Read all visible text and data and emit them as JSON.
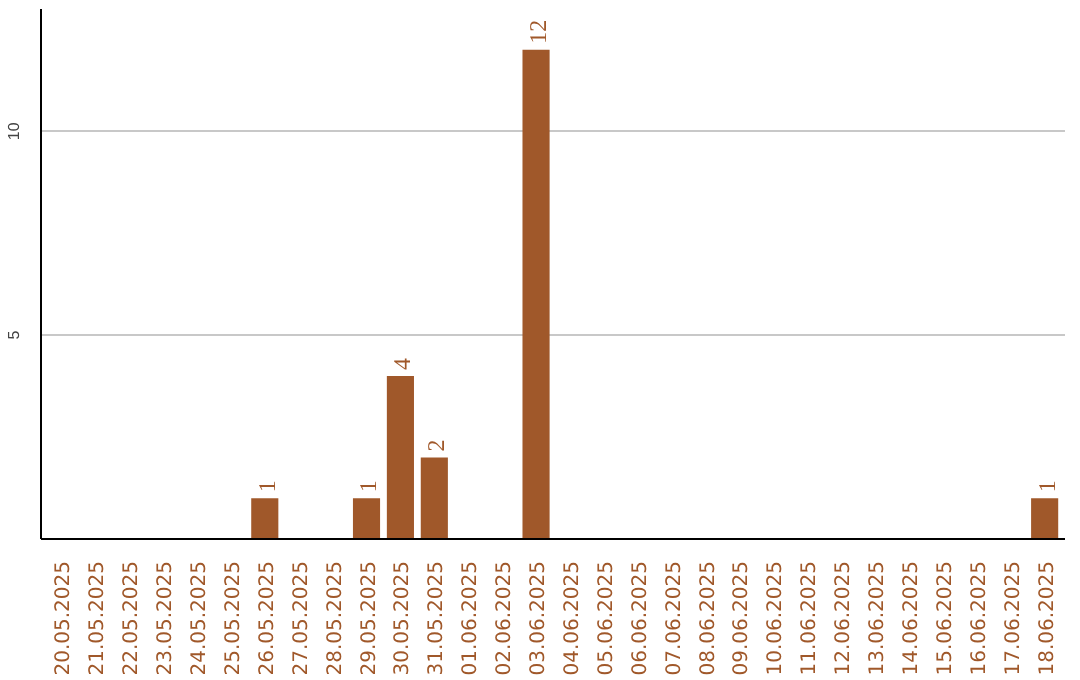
{
  "chart_data": {
    "type": "bar",
    "categories": [
      "20.05.2025",
      "21.05.2025",
      "22.05.2025",
      "23.05.2025",
      "24.05.2025",
      "25.05.2025",
      "26.05.2025",
      "27.05.2025",
      "28.05.2025",
      "29.05.2025",
      "30.05.2025",
      "31.05.2025",
      "01.06.2025",
      "02.06.2025",
      "03.06.2025",
      "04.06.2025",
      "05.06.2025",
      "06.06.2025",
      "07.06.2025",
      "08.06.2025",
      "09.06.2025",
      "10.06.2025",
      "11.06.2025",
      "12.06.2025",
      "13.06.2025",
      "14.06.2025",
      "15.06.2025",
      "16.06.2025",
      "17.06.2025",
      "18.06.2025"
    ],
    "values": [
      0,
      0,
      0,
      0,
      0,
      0,
      1,
      0,
      0,
      1,
      4,
      2,
      0,
      0,
      12,
      0,
      0,
      0,
      0,
      0,
      0,
      0,
      0,
      0,
      0,
      0,
      0,
      0,
      0,
      1
    ],
    "value_labels": [
      null,
      null,
      null,
      null,
      null,
      null,
      "1",
      null,
      null,
      "1",
      "4",
      "2",
      null,
      null,
      "12",
      null,
      null,
      null,
      null,
      null,
      null,
      null,
      null,
      null,
      null,
      null,
      null,
      null,
      null,
      "1"
    ],
    "color": "#a0582a",
    "ylim": [
      0,
      13
    ],
    "yticks": [
      5,
      10
    ],
    "grid": "y"
  }
}
